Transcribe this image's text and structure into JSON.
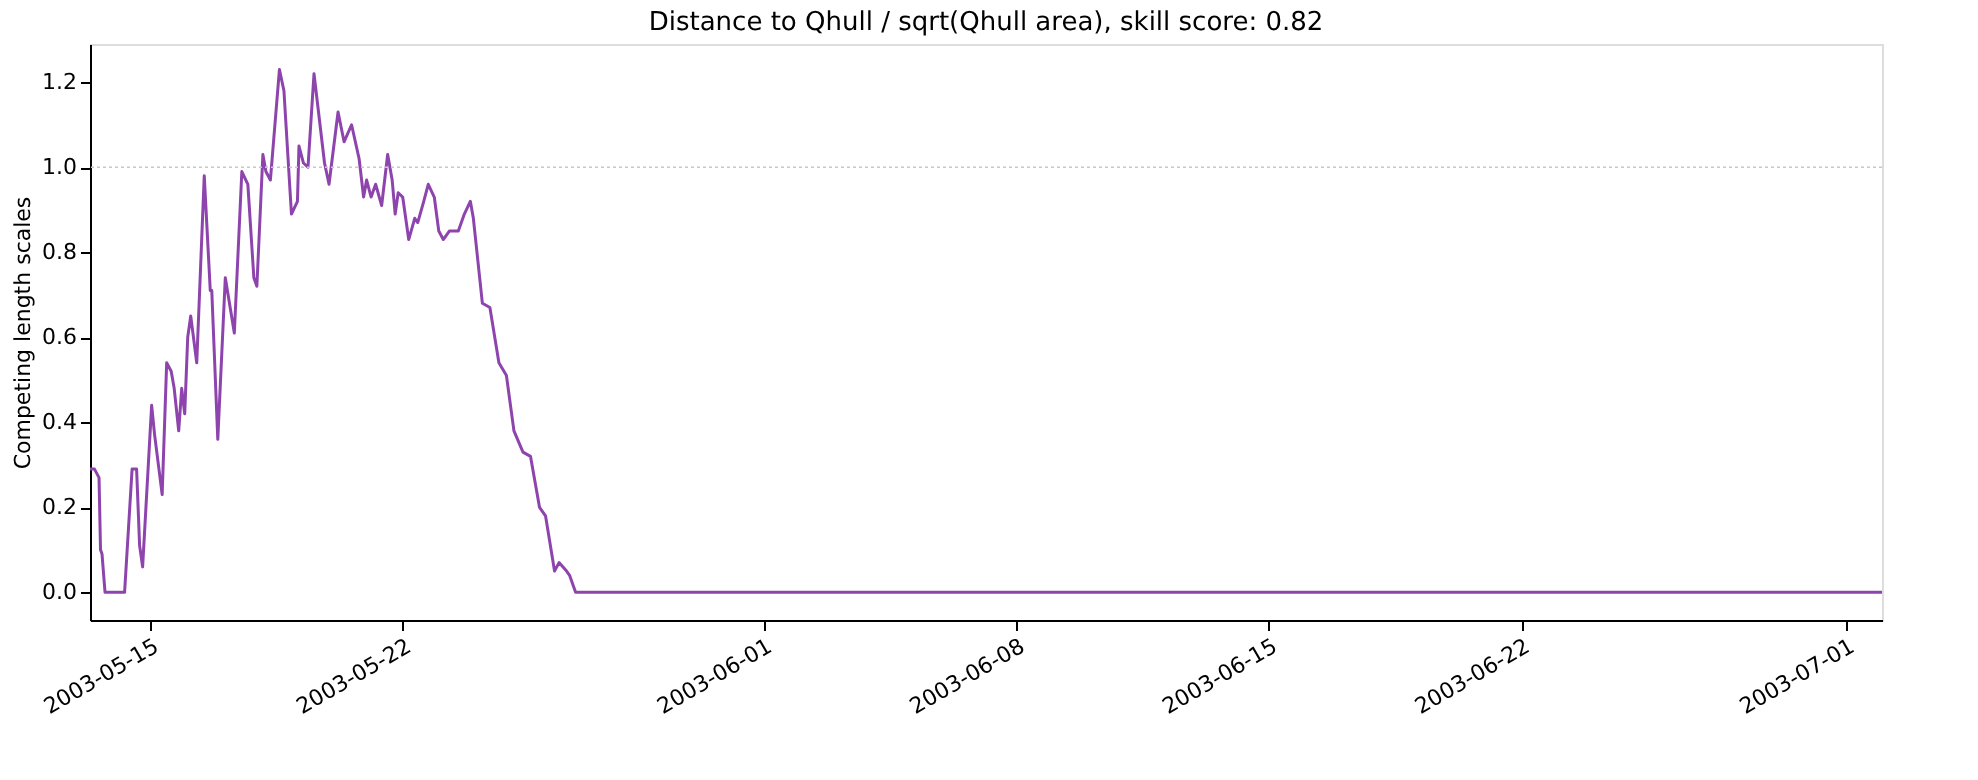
{
  "chart_data": {
    "type": "line",
    "title": "Distance to Qhull / sqrt(Qhull area), skill score: 0.82",
    "ylabel": "Competing length scales",
    "x": [
      "2003-05-13T08:00",
      "2003-05-13T11:00",
      "2003-05-13T14:00",
      "2003-05-13T15:00",
      "2003-05-13T16:00",
      "2003-05-13T18:00",
      "2003-05-14T07:00",
      "2003-05-14T12:00",
      "2003-05-14T15:00",
      "2003-05-14T17:00",
      "2003-05-14T19:00",
      "2003-05-15T01:00",
      "2003-05-15T03:00",
      "2003-05-15T08:00",
      "2003-05-15T11:00",
      "2003-05-15T14:00",
      "2003-05-15T16:00",
      "2003-05-15T19:00",
      "2003-05-15T21:00",
      "2003-05-15T23:00",
      "2003-05-16T01:00",
      "2003-05-16T03:00",
      "2003-05-16T07:00",
      "2003-05-16T12:00",
      "2003-05-16T16:00",
      "2003-05-16T17:00",
      "2003-05-16T21:00",
      "2003-05-17T02:00",
      "2003-05-17T08:00",
      "2003-05-17T13:00",
      "2003-05-17T17:00",
      "2003-05-17T21:00",
      "2003-05-17T23:00",
      "2003-05-18T03:00",
      "2003-05-18T05:00",
      "2003-05-18T08:00",
      "2003-05-18T14:00",
      "2003-05-18T17:00",
      "2003-05-18T22:00",
      "2003-05-19T02:00",
      "2003-05-19T03:00",
      "2003-05-19T06:00",
      "2003-05-19T09:00",
      "2003-05-19T13:00",
      "2003-05-19T20:00",
      "2003-05-19T23:00",
      "2003-05-20T05:00",
      "2003-05-20T09:00",
      "2003-05-20T14:00",
      "2003-05-20T19:00",
      "2003-05-20T22:00",
      "2003-05-21T00:00",
      "2003-05-21T03:00",
      "2003-05-21T06:00",
      "2003-05-21T10:00",
      "2003-05-21T14:00",
      "2003-05-21T17:00",
      "2003-05-21T19:00",
      "2003-05-21T21:00",
      "2003-05-22T00:00",
      "2003-05-22T04:00",
      "2003-05-22T08:00",
      "2003-05-22T10:00",
      "2003-05-22T14:00",
      "2003-05-22T17:00",
      "2003-05-22T21:00",
      "2003-05-23T00:00",
      "2003-05-23T03:00",
      "2003-05-23T07:00",
      "2003-05-23T13:00",
      "2003-05-23T17:00",
      "2003-05-23T21:00",
      "2003-05-23T23:00",
      "2003-05-24T05:00",
      "2003-05-24T10:00",
      "2003-05-24T16:00",
      "2003-05-24T21:00",
      "2003-05-25T02:00",
      "2003-05-25T08:00",
      "2003-05-25T13:00",
      "2003-05-25T19:00",
      "2003-05-25T23:00",
      "2003-05-26T05:00",
      "2003-05-26T08:00",
      "2003-05-26T13:00",
      "2003-05-26T15:00",
      "2003-05-26T19:00",
      "2003-07-02T00:00"
    ],
    "series": [
      {
        "color": "#8e44ad",
        "values": [
          0.29,
          0.29,
          0.27,
          0.1,
          0.09,
          0.0,
          0.0,
          0.29,
          0.29,
          0.11,
          0.06,
          0.44,
          0.37,
          0.23,
          0.54,
          0.52,
          0.48,
          0.38,
          0.48,
          0.42,
          0.6,
          0.65,
          0.54,
          0.98,
          0.71,
          0.71,
          0.36,
          0.74,
          0.61,
          0.99,
          0.96,
          0.74,
          0.72,
          1.03,
          0.99,
          0.97,
          1.23,
          1.18,
          0.89,
          0.92,
          1.05,
          1.01,
          1.0,
          1.22,
          1.01,
          0.96,
          1.13,
          1.06,
          1.1,
          1.02,
          0.93,
          0.97,
          0.93,
          0.96,
          0.91,
          1.03,
          0.97,
          0.89,
          0.94,
          0.93,
          0.83,
          0.88,
          0.87,
          0.92,
          0.96,
          0.93,
          0.85,
          0.83,
          0.85,
          0.85,
          0.89,
          0.92,
          0.88,
          0.68,
          0.67,
          0.54,
          0.51,
          0.38,
          0.33,
          0.32,
          0.2,
          0.18,
          0.05,
          0.07,
          0.05,
          0.04,
          0.0,
          0.0
        ]
      }
    ],
    "xlim": [
      "2003-05-13T08:00",
      "2003-07-02T00:00"
    ],
    "xticks": [
      "2003-05-15",
      "2003-05-22",
      "2003-06-01",
      "2003-06-08",
      "2003-06-15",
      "2003-06-22",
      "2003-07-01"
    ],
    "ylim": [
      -0.065,
      1.29
    ],
    "yticks": [
      {
        "value": 0,
        "label": "0.0"
      },
      {
        "value": 0.2,
        "label": "0.2"
      },
      {
        "value": 0.4,
        "label": "0.4"
      },
      {
        "value": 0.6,
        "label": "0.6"
      },
      {
        "value": 0.8,
        "label": "0.8"
      },
      {
        "value": 1.0,
        "label": "1.0"
      },
      {
        "value": 1.2,
        "label": "1.2"
      }
    ],
    "ref_lines": [
      {
        "axis": "y",
        "value": 1.0,
        "color": "#c8c8c8",
        "line_style": "dotted"
      }
    ],
    "grid": false
  }
}
